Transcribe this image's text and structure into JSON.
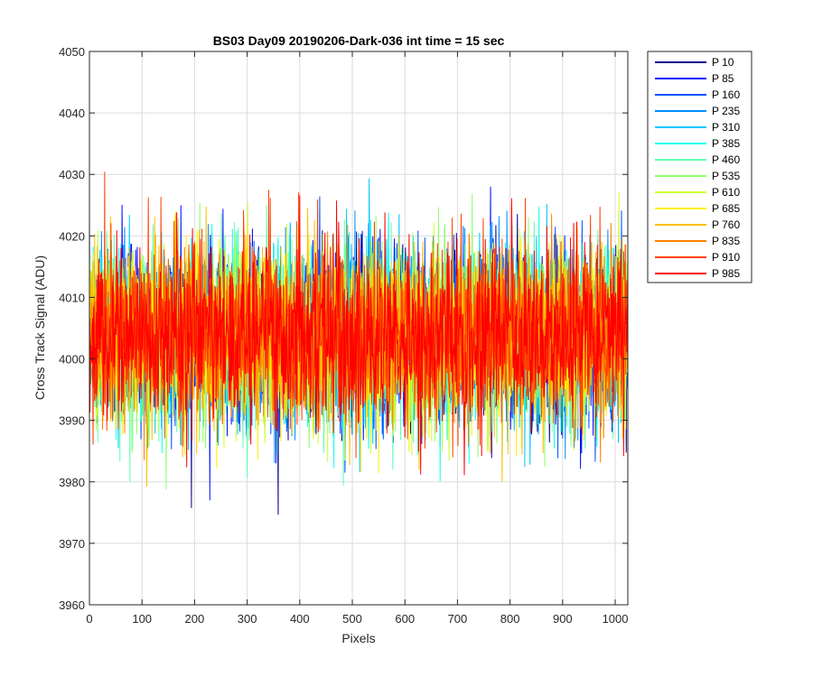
{
  "chart_data": {
    "type": "line",
    "title": "BS03 Day09 20190206-Dark-036 int time = 15 sec",
    "xlabel": "Pixels",
    "ylabel": "Cross Track Signal (ADU)",
    "xlim": [
      0,
      1024
    ],
    "ylim": [
      3960,
      4050
    ],
    "xticks": [
      "0",
      "100",
      "200",
      "300",
      "400",
      "500",
      "600",
      "700",
      "800",
      "900",
      "1000"
    ],
    "yticks": [
      "3960",
      "3970",
      "3980",
      "3990",
      "4000",
      "4010",
      "4020",
      "4030",
      "4040",
      "4050"
    ],
    "grid": true,
    "legend_position": "outside-right",
    "noise_model": {
      "mean": 4004,
      "std": 7,
      "min": 3968,
      "max": 4041,
      "points_per_series": 1024
    },
    "series": [
      {
        "name": "P 10",
        "color": "#00008f"
      },
      {
        "name": "P 85",
        "color": "#0010ff"
      },
      {
        "name": "P 160",
        "color": "#0050ff"
      },
      {
        "name": "P 235",
        "color": "#0090ff"
      },
      {
        "name": "P 310",
        "color": "#00c8ff"
      },
      {
        "name": "P 385",
        "color": "#10ffef"
      },
      {
        "name": "P 460",
        "color": "#60ffb0"
      },
      {
        "name": "P 535",
        "color": "#8fff70"
      },
      {
        "name": "P 610",
        "color": "#cfff30"
      },
      {
        "name": "P 685",
        "color": "#ffef00"
      },
      {
        "name": "P 760",
        "color": "#ffbf00"
      },
      {
        "name": "P 835",
        "color": "#ff8000"
      },
      {
        "name": "P 910",
        "color": "#ff4000"
      },
      {
        "name": "P 985",
        "color": "#ff0000"
      }
    ]
  }
}
